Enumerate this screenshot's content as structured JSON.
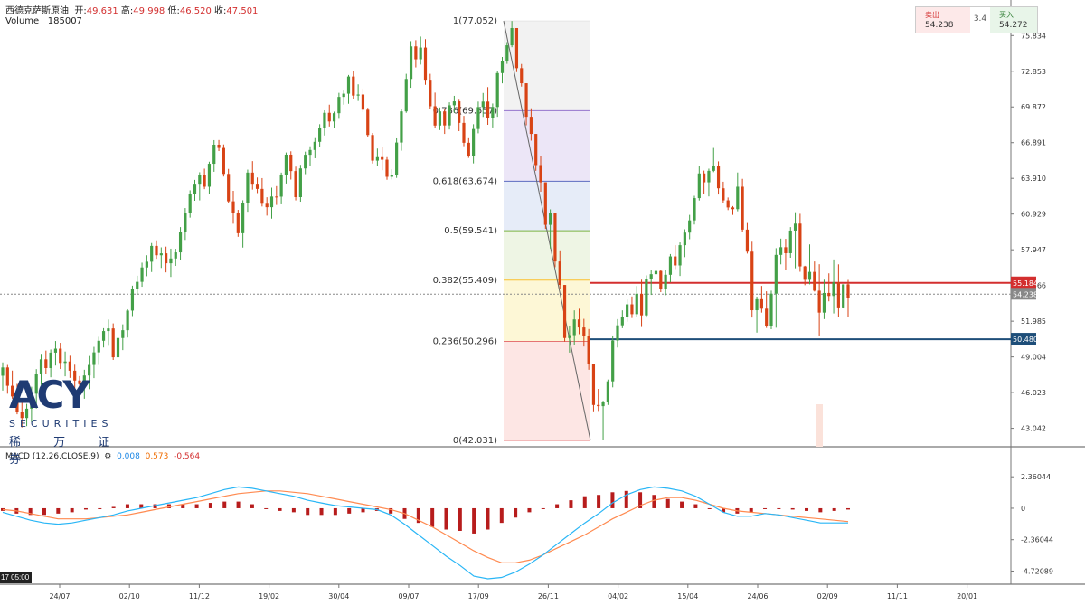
{
  "header": {
    "symbol": "西德克萨斯原油",
    "open_label": "开:",
    "open": "49.631",
    "high_label": "高:",
    "high": "49.998",
    "low_label": "低:",
    "low": "46.520",
    "close_label": "收:",
    "close": "47.501",
    "volume_label": "Volume",
    "volume": "185007"
  },
  "macd_header": {
    "label": "MACD (12,26,CLOSE,9)",
    "macd": "0.008",
    "signal": "0.573",
    "hist": "-0.564"
  },
  "trade_widget": {
    "sell_label": "卖出",
    "sell_price": "54.238",
    "spread": "3.4",
    "buy_label": "买入",
    "buy_price": "54.272"
  },
  "logo": {
    "brand": "ACY",
    "subtitle": "SECURITIES",
    "chinese": "稀 万 证 券"
  },
  "time_box": "17  05:00",
  "colors": {
    "up": "#43a047",
    "down": "#d84315",
    "resistance": "#d32f2f",
    "support": "#1e4e79",
    "macd_line": "#29b6f6",
    "signal_line": "#ff8a50",
    "hist": "#b71c1c"
  },
  "chart_data": [
    {
      "type": "candlestick",
      "ylim": [
        41.5,
        78.8
      ],
      "y_ticks": [
        "75.834",
        "72.853",
        "69.872",
        "66.891",
        "63.910",
        "60.929",
        "57.947",
        "54.966",
        "51.985",
        "49.004",
        "46.023",
        "43.042"
      ],
      "x_ticks": [
        "24/07",
        "02/10",
        "11/12",
        "19/02",
        "30/04",
        "09/07",
        "17/09",
        "26/11",
        "04/02",
        "15/04",
        "24/06",
        "02/09",
        "11/11",
        "20/01"
      ],
      "candles_ohlc": [
        [
          47.43,
          48.54,
          46.19,
          48.12
        ],
        [
          48.12,
          48.33,
          45.93,
          46.59
        ],
        [
          46.59,
          47.86,
          45.51,
          45.7
        ],
        [
          45.7,
          46.75,
          44.21,
          44.39
        ],
        [
          44.39,
          45.53,
          43.11,
          43.9
        ],
        [
          43.9,
          45.08,
          43.22,
          44.68
        ],
        [
          44.68,
          46.51,
          43.55,
          45.93
        ],
        [
          45.93,
          47.98,
          44.69,
          47.57
        ],
        [
          47.57,
          49.26,
          46.65,
          48.8
        ],
        [
          48.8,
          49.53,
          47.57,
          48.07
        ],
        [
          48.07,
          49.62,
          47.3,
          49.36
        ],
        [
          49.36,
          50.33,
          48.28,
          49.69
        ],
        [
          49.69,
          50.18,
          47.99,
          48.5
        ],
        [
          48.5,
          49.45,
          47.38,
          48.62
        ],
        [
          48.62,
          49.1,
          47.25,
          47.85
        ],
        [
          47.85,
          48.35,
          46.39,
          47.03
        ],
        [
          47.03,
          47.4,
          45.75,
          46.73
        ],
        [
          46.73,
          47.93,
          45.51,
          47.45
        ],
        [
          47.45,
          49.08,
          46.31,
          48.33
        ],
        [
          48.33,
          49.84,
          47.23,
          49.38
        ],
        [
          49.38,
          50.68,
          48.33,
          50.35
        ],
        [
          50.35,
          51.4,
          49.79,
          51.16
        ],
        [
          51.16,
          52.12,
          49.93,
          51.38
        ],
        [
          51.38,
          51.8,
          48.75,
          48.97
        ],
        [
          48.97,
          50.94,
          48.47,
          50.58
        ],
        [
          50.58,
          51.72,
          49.57,
          51.23
        ],
        [
          51.23,
          52.98,
          50.62,
          52.87
        ],
        [
          52.87,
          54.95,
          52.41,
          54.66
        ],
        [
          54.66,
          55.78,
          54.25,
          55.27
        ],
        [
          55.27,
          56.87,
          54.86,
          56.47
        ],
        [
          56.47,
          57.49,
          55.74,
          56.95
        ],
        [
          56.95,
          58.51,
          56.09,
          58.27
        ],
        [
          58.27,
          58.73,
          57.2,
          57.49
        ],
        [
          57.49,
          58.15,
          56.43,
          57.65
        ],
        [
          57.65,
          58.21,
          56.06,
          56.82
        ],
        [
          56.82,
          58.04,
          55.68,
          57.22
        ],
        [
          57.22,
          58.03,
          56.6,
          57.73
        ],
        [
          57.73,
          59.84,
          57.09,
          59.47
        ],
        [
          59.47,
          61.43,
          58.77,
          61.02
        ],
        [
          61.02,
          62.91,
          60.63,
          62.61
        ],
        [
          62.61,
          63.78,
          62.04,
          63.46
        ],
        [
          63.46,
          64.42,
          62.07,
          64.2
        ],
        [
          64.2,
          64.72,
          63.01,
          63.21
        ],
        [
          63.21,
          65.3,
          62.58,
          65.13
        ],
        [
          65.13,
          67.1,
          64.46,
          66.72
        ],
        [
          66.72,
          67.11,
          66.19,
          66.45
        ],
        [
          66.45,
          66.74,
          64.06,
          64.28
        ],
        [
          64.28,
          64.7,
          61.86,
          61.99
        ],
        [
          61.99,
          62.87,
          60.12,
          61.04
        ],
        [
          61.04,
          61.28,
          59.03,
          59.33
        ],
        [
          59.33,
          62.08,
          58.13,
          61.87
        ],
        [
          61.87,
          64.64,
          61.12,
          64.39
        ],
        [
          64.39,
          65.35,
          62.97,
          63.46
        ],
        [
          63.46,
          63.98,
          62.68,
          63.03
        ],
        [
          63.03,
          63.93,
          61.56,
          61.79
        ],
        [
          61.79,
          62.33,
          60.8,
          61.5
        ],
        [
          61.5,
          63.13,
          60.55,
          62.39
        ],
        [
          62.39,
          63.26,
          61.69,
          62.38
        ],
        [
          62.38,
          64.39,
          61.74,
          64.23
        ],
        [
          64.23,
          66.07,
          63.48,
          65.89
        ],
        [
          65.89,
          66.17,
          63.81,
          64.52
        ],
        [
          64.52,
          64.89,
          62.07,
          62.34
        ],
        [
          62.34,
          65.04,
          61.96,
          64.74
        ],
        [
          64.74,
          66.14,
          64.26,
          65.88
        ],
        [
          65.88,
          66.59,
          64.97,
          66.28
        ],
        [
          66.28,
          67.27,
          65.59,
          66.96
        ],
        [
          66.96,
          68.43,
          66.57,
          68.15
        ],
        [
          68.15,
          69.59,
          67.49,
          69.38
        ],
        [
          69.38,
          70.06,
          68.24,
          68.66
        ],
        [
          68.66,
          69.48,
          68.15,
          69.35
        ],
        [
          69.35,
          71.05,
          68.88,
          70.71
        ],
        [
          70.71,
          71.24,
          70.06,
          70.98
        ],
        [
          70.98,
          72.54,
          70.14,
          72.41
        ],
        [
          72.41,
          72.87,
          70.51,
          70.82
        ],
        [
          70.82,
          71.76,
          70.37,
          70.91
        ],
        [
          70.91,
          71.41,
          69.44,
          69.64
        ],
        [
          69.64,
          69.8,
          67.33,
          67.53
        ],
        [
          67.53,
          67.7,
          65.15,
          65.39
        ],
        [
          65.39,
          66.4,
          64.91,
          65.68
        ],
        [
          65.68,
          66.57,
          64.59,
          65.47
        ],
        [
          65.47,
          65.68,
          63.79,
          64.04
        ],
        [
          64.04,
          64.67,
          63.83,
          64.18
        ],
        [
          64.18,
          67.25,
          63.95,
          66.9
        ],
        [
          66.9,
          69.71,
          66.22,
          69.5
        ],
        [
          69.5,
          72.64,
          69.38,
          72.21
        ],
        [
          72.21,
          75.37,
          71.47,
          74.93
        ],
        [
          74.93,
          75.45,
          73.17,
          73.85
        ],
        [
          73.85,
          75.75,
          73.41,
          74.83
        ],
        [
          74.83,
          75.53,
          71.72,
          72.07
        ],
        [
          72.07,
          72.64,
          69.73,
          69.93
        ],
        [
          69.93,
          71.07,
          68.1,
          68.32
        ],
        [
          68.32,
          69.83,
          67.94,
          69.5
        ],
        [
          69.5,
          69.71,
          67.62,
          68.33
        ],
        [
          68.33,
          70.26,
          67.99,
          70.01
        ],
        [
          70.01,
          70.8,
          69.38,
          70.34
        ],
        [
          70.34,
          70.47,
          67.85,
          68.54
        ],
        [
          68.54,
          69.13,
          66.6,
          66.88
        ],
        [
          66.88,
          67.26,
          65.62,
          65.78
        ],
        [
          65.78,
          68.43,
          65.16,
          68.03
        ],
        [
          68.03,
          70.32,
          67.67,
          69.86
        ],
        [
          69.86,
          71.04,
          69.04,
          70.32
        ],
        [
          70.32,
          71.53,
          68.38,
          68.95
        ],
        [
          68.95,
          70.16,
          68.16,
          69.87
        ],
        [
          69.87,
          72.85,
          69.05,
          72.7
        ],
        [
          72.7,
          74.04,
          71.84,
          73.74
        ],
        [
          73.74,
          75.29,
          73.47,
          75.02
        ],
        [
          75.02,
          77.05,
          74.86,
          76.46
        ],
        [
          76.46,
          76.46,
          72.78,
          73.11
        ],
        [
          73.11,
          73.46,
          71.57,
          71.85
        ],
        [
          71.85,
          71.85,
          68.34,
          69.05
        ],
        [
          69.05,
          69.76,
          67.06,
          67.62
        ],
        [
          67.62,
          67.62,
          64.54,
          65.02
        ],
        [
          65.02,
          65.8,
          62.79,
          63.58
        ],
        [
          63.58,
          63.58,
          59.69,
          60.03
        ],
        [
          60.03,
          61.32,
          58.05,
          60.98
        ],
        [
          60.98,
          60.98,
          56.49,
          56.97
        ],
        [
          56.97,
          57.9,
          54.66,
          55.01
        ],
        [
          55.01,
          55.01,
          50.28,
          50.58
        ],
        [
          50.58,
          51.62,
          49.36,
          50.82
        ],
        [
          50.82,
          52.89,
          50.01,
          52.13
        ],
        [
          52.13,
          53.02,
          50.9,
          51.46
        ],
        [
          51.46,
          52.18,
          49.87,
          50.77
        ],
        [
          50.77,
          51.33,
          47.93,
          48.43
        ],
        [
          48.43,
          48.43,
          44.46,
          44.99
        ],
        [
          44.99,
          46.33,
          44.49,
          44.89
        ],
        [
          44.89,
          45.34,
          42.03,
          45.21
        ],
        [
          45.21,
          47.11,
          44.99,
          46.96
        ],
        [
          46.96,
          50.79,
          46.46,
          50.37
        ],
        [
          50.37,
          52.16,
          49.79,
          51.64
        ],
        [
          51.64,
          52.89,
          51.4,
          52.36
        ],
        [
          52.36,
          53.8,
          51.94,
          53.39
        ],
        [
          53.39,
          54.05,
          52.25,
          52.57
        ],
        [
          52.57,
          54.92,
          52.35,
          54.27
        ],
        [
          54.27,
          55.45,
          51.5,
          52.47
        ],
        [
          52.47,
          55.81,
          52.29,
          55.47
        ],
        [
          55.47,
          56.23,
          54.18,
          55.91
        ],
        [
          55.91,
          56.76,
          55.36,
          56.18
        ],
        [
          56.18,
          56.28,
          54.41,
          54.66
        ],
        [
          54.66,
          56.29,
          54.15,
          55.86
        ],
        [
          55.86,
          57.59,
          55.23,
          57.39
        ],
        [
          57.39,
          58.33,
          56.34,
          56.64
        ],
        [
          56.64,
          58.56,
          55.76,
          58.33
        ],
        [
          58.33,
          59.66,
          57.33,
          59.38
        ],
        [
          59.38,
          60.86,
          58.83,
          60.4
        ],
        [
          60.4,
          62.45,
          60.06,
          62.26
        ],
        [
          62.26,
          64.92,
          62.06,
          64.32
        ],
        [
          64.32,
          64.56,
          62.63,
          63.58
        ],
        [
          63.58,
          64.72,
          62.4,
          64.54
        ],
        [
          64.54,
          66.45,
          64.43,
          64.95
        ],
        [
          64.95,
          65.33,
          62.56,
          63.08
        ],
        [
          63.08,
          63.63,
          61.82,
          62.07
        ],
        [
          62.07,
          62.31,
          61.26,
          61.48
        ],
        [
          61.48,
          61.59,
          60.86,
          61.34
        ],
        [
          61.34,
          64.4,
          61.16,
          63.21
        ],
        [
          63.21,
          63.87,
          59.45,
          59.63
        ],
        [
          59.63,
          60.18,
          57.63,
          57.79
        ],
        [
          57.79,
          58.62,
          52.29,
          52.9
        ],
        [
          52.9,
          54.04,
          51.03,
          53.82
        ],
        [
          53.82,
          54.93,
          52.7,
          53.03
        ],
        [
          53.03,
          54.48,
          51.42,
          51.58
        ],
        [
          51.58,
          54.53,
          51.32,
          54.28
        ],
        [
          54.28,
          58.08,
          51.44,
          57.52
        ],
        [
          57.52,
          58.88,
          56.73,
          58.16
        ],
        [
          58.16,
          58.86,
          56.25,
          57.66
        ],
        [
          57.66,
          59.84,
          57.28,
          59.55
        ],
        [
          59.55,
          61.08,
          56.4,
          60.13
        ],
        [
          60.13,
          60.95,
          56.11,
          56.56
        ],
        [
          56.56,
          56.61,
          54.99,
          55.44
        ],
        [
          55.44,
          58.39,
          55.06,
          56.1
        ],
        [
          56.1,
          56.97,
          54.46,
          54.53
        ],
        [
          54.53,
          56.74,
          50.79,
          52.7
        ],
        [
          52.7,
          55.45,
          52.16,
          54.34
        ],
        [
          54.34,
          55.98,
          53.64,
          54.09
        ],
        [
          54.09,
          57.14,
          52.63,
          55.23
        ],
        [
          55.23,
          56.73,
          52.3,
          53.06
        ],
        [
          53.06,
          55.06,
          53.05,
          55.06
        ],
        [
          55.06,
          55.43,
          52.3,
          53.93
        ]
      ],
      "y_price_labels": [
        "54.238"
      ],
      "fib_levels": [
        {
          "ratio": "1",
          "value": 77.052,
          "color": "#e6e6e6"
        },
        {
          "ratio": "0.786",
          "value": 69.557,
          "color": "#9575cd"
        },
        {
          "ratio": "0.618",
          "value": 63.674,
          "color": "#5c6bc0"
        },
        {
          "ratio": "0.5",
          "value": 59.541,
          "color": "#7cb342"
        },
        {
          "ratio": "0.382",
          "value": 55.409,
          "color": "#fbc02d"
        },
        {
          "ratio": "0.236",
          "value": 50.296,
          "color": "#e57373"
        },
        {
          "ratio": "0",
          "value": 42.031,
          "color": "#e57373"
        }
      ],
      "resistance_level": 55.184,
      "support_level": 50.48,
      "current_price": 54.238
    },
    {
      "type": "macd",
      "ylim": [
        -5.3,
        3.8
      ],
      "y_ticks": [
        "2.36044",
        "0",
        "-2.36044",
        "-4.72089"
      ],
      "macd": [
        -0.3,
        -0.6,
        -0.9,
        -1.1,
        -1.2,
        -1.1,
        -0.9,
        -0.7,
        -0.5,
        -0.2,
        0.0,
        0.2,
        0.4,
        0.6,
        0.8,
        1.1,
        1.4,
        1.6,
        1.5,
        1.3,
        1.1,
        0.9,
        0.6,
        0.4,
        0.2,
        0.1,
        0.0,
        -0.1,
        -0.5,
        -1.2,
        -2.0,
        -2.8,
        -3.6,
        -4.3,
        -5.1,
        -5.3,
        -5.2,
        -4.8,
        -4.2,
        -3.5,
        -2.7,
        -1.9,
        -1.1,
        -0.4,
        0.4,
        1.0,
        1.4,
        1.6,
        1.5,
        1.3,
        0.9,
        0.3,
        -0.3,
        -0.6,
        -0.6,
        -0.4,
        -0.5,
        -0.7,
        -0.9,
        -1.1,
        -1.1,
        -1.1
      ],
      "signal": [
        -0.1,
        -0.2,
        -0.4,
        -0.6,
        -0.8,
        -0.8,
        -0.8,
        -0.7,
        -0.6,
        -0.5,
        -0.3,
        -0.1,
        0.1,
        0.3,
        0.5,
        0.7,
        0.9,
        1.1,
        1.2,
        1.3,
        1.3,
        1.2,
        1.1,
        0.9,
        0.7,
        0.5,
        0.3,
        0.1,
        -0.1,
        -0.4,
        -0.9,
        -1.4,
        -2.0,
        -2.6,
        -3.2,
        -3.7,
        -4.1,
        -4.1,
        -3.9,
        -3.5,
        -3.0,
        -2.5,
        -2.0,
        -1.4,
        -0.8,
        -0.3,
        0.2,
        0.6,
        0.8,
        0.8,
        0.6,
        0.3,
        0.0,
        -0.2,
        -0.3,
        -0.4,
        -0.5,
        -0.6,
        -0.7,
        -0.8,
        -0.9,
        -1.0
      ]
    }
  ]
}
